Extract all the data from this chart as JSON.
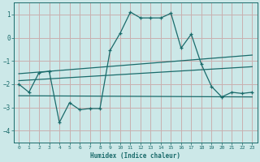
{
  "xlabel": "Humidex (Indice chaleur)",
  "bg_color": "#cce8e8",
  "grid_color": "#c8b0b0",
  "line_color": "#1a6b6b",
  "xlim": [
    -0.5,
    23.5
  ],
  "ylim": [
    -4.5,
    1.5
  ],
  "yticks": [
    -4,
    -3,
    -2,
    -1,
    0,
    1
  ],
  "xticks": [
    0,
    1,
    2,
    3,
    4,
    5,
    6,
    7,
    8,
    9,
    10,
    11,
    12,
    13,
    14,
    15,
    16,
    17,
    18,
    19,
    20,
    21,
    22,
    23
  ],
  "line1_x": [
    0,
    1,
    2,
    3,
    4,
    5,
    6,
    7,
    8,
    9,
    10,
    11,
    12,
    13,
    14,
    15,
    16,
    17,
    18,
    19,
    20,
    21,
    22,
    23
  ],
  "line1_y": [
    -2.0,
    -2.35,
    -1.5,
    -1.45,
    -3.65,
    -2.8,
    -3.1,
    -3.05,
    -3.05,
    -0.55,
    0.2,
    1.1,
    0.85,
    0.85,
    0.85,
    1.05,
    -0.45,
    0.15,
    -1.15,
    -2.1,
    -2.55,
    -2.35,
    -2.4,
    -2.35
  ],
  "line2_x": [
    0,
    23
  ],
  "line2_y": [
    -1.55,
    -0.75
  ],
  "line3_x": [
    0,
    23
  ],
  "line3_y": [
    -1.85,
    -1.25
  ],
  "line4_x": [
    0,
    23
  ],
  "line4_y": [
    -2.5,
    -2.55
  ]
}
